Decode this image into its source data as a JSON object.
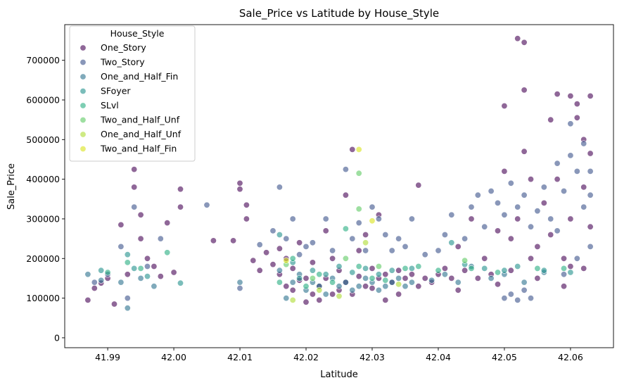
{
  "chart_data": {
    "type": "scatter",
    "title": "Sale_Price vs Latitude by House_Style",
    "xlabel": "Latitude",
    "ylabel": "Sale_Price",
    "xlim": [
      41.9835,
      42.0665
    ],
    "ylim": [
      -25000,
      790000
    ],
    "x_ticks": [
      41.99,
      42.0,
      42.01,
      42.02,
      42.03,
      42.04,
      42.05,
      42.06
    ],
    "x_tick_labels": [
      "41.99",
      "42.00",
      "42.01",
      "42.02",
      "42.03",
      "42.04",
      "42.05",
      "42.06"
    ],
    "y_ticks": [
      0,
      100000,
      200000,
      300000,
      400000,
      500000,
      600000,
      700000
    ],
    "y_tick_labels": [
      "0",
      "100000",
      "200000",
      "300000",
      "400000",
      "500000",
      "600000",
      "700000"
    ],
    "grid": false,
    "marker_alpha": 0.6,
    "legend": {
      "title": "House_Style",
      "placement": "upper-left",
      "entries": [
        "One_Story",
        "Two_Story",
        "One_and_Half_Fin",
        "SFoyer",
        "SLvl",
        "Two_and_Half_Unf",
        "One_and_Half_Unf",
        "Two_and_Half_Fin"
      ]
    },
    "series": [
      {
        "name": "One_Story",
        "color": "#440154",
        "points": [
          [
            41.987,
            95000
          ],
          [
            41.988,
            125000
          ],
          [
            41.989,
            138000
          ],
          [
            41.99,
            150000
          ],
          [
            41.991,
            85000
          ],
          [
            41.992,
            285000
          ],
          [
            41.993,
            160000
          ],
          [
            41.994,
            425000
          ],
          [
            41.994,
            380000
          ],
          [
            41.995,
            310000
          ],
          [
            41.995,
            250000
          ],
          [
            41.996,
            200000
          ],
          [
            41.997,
            180000
          ],
          [
            41.998,
            155000
          ],
          [
            41.999,
            290000
          ],
          [
            42.0,
            165000
          ],
          [
            42.001,
            375000
          ],
          [
            42.001,
            330000
          ],
          [
            42.006,
            245000
          ],
          [
            42.009,
            245000
          ],
          [
            42.01,
            390000
          ],
          [
            42.01,
            375000
          ],
          [
            42.011,
            335000
          ],
          [
            42.011,
            300000
          ],
          [
            42.012,
            195000
          ],
          [
            42.013,
            170000
          ],
          [
            42.014,
            215000
          ],
          [
            42.015,
            185000
          ],
          [
            42.016,
            160000
          ],
          [
            42.016,
            225000
          ],
          [
            42.017,
            130000
          ],
          [
            42.017,
            200000
          ],
          [
            42.018,
            175000
          ],
          [
            42.018,
            120000
          ],
          [
            42.019,
            145000
          ],
          [
            42.019,
            240000
          ],
          [
            42.02,
            90000
          ],
          [
            42.02,
            150000
          ],
          [
            42.021,
            110000
          ],
          [
            42.021,
            190000
          ],
          [
            42.022,
            95000
          ],
          [
            42.022,
            130000
          ],
          [
            42.023,
            150000
          ],
          [
            42.023,
            270000
          ],
          [
            42.024,
            110000
          ],
          [
            42.024,
            200000
          ],
          [
            42.025,
            120000
          ],
          [
            42.025,
            170000
          ],
          [
            42.026,
            360000
          ],
          [
            42.026,
            140000
          ],
          [
            42.027,
            475000
          ],
          [
            42.027,
            110000
          ],
          [
            42.028,
            155000
          ],
          [
            42.028,
            220000
          ],
          [
            42.029,
            130000
          ],
          [
            42.029,
            260000
          ],
          [
            42.03,
            125000
          ],
          [
            42.03,
            175000
          ],
          [
            42.031,
            150000
          ],
          [
            42.031,
            310000
          ],
          [
            42.032,
            95000
          ],
          [
            42.032,
            160000
          ],
          [
            42.033,
            140000
          ],
          [
            42.034,
            170000
          ],
          [
            42.034,
            110000
          ],
          [
            42.035,
            150000
          ],
          [
            42.036,
            160000
          ],
          [
            42.037,
            385000
          ],
          [
            42.037,
            130000
          ],
          [
            42.038,
            150000
          ],
          [
            42.039,
            140000
          ],
          [
            42.04,
            160000
          ],
          [
            42.041,
            175000
          ],
          [
            42.042,
            150000
          ],
          [
            42.043,
            230000
          ],
          [
            42.043,
            120000
          ],
          [
            42.044,
            170000
          ],
          [
            42.045,
            300000
          ],
          [
            42.046,
            150000
          ],
          [
            42.047,
            200000
          ],
          [
            42.048,
            160000
          ],
          [
            42.049,
            135000
          ],
          [
            42.049,
            270000
          ],
          [
            42.05,
            585000
          ],
          [
            42.05,
            420000
          ],
          [
            42.051,
            250000
          ],
          [
            42.051,
            170000
          ],
          [
            42.052,
            755000
          ],
          [
            42.052,
            300000
          ],
          [
            42.053,
            745000
          ],
          [
            42.053,
            625000
          ],
          [
            42.053,
            470000
          ],
          [
            42.054,
            400000
          ],
          [
            42.054,
            200000
          ],
          [
            42.055,
            230000
          ],
          [
            42.055,
            150000
          ],
          [
            42.056,
            340000
          ],
          [
            42.057,
            550000
          ],
          [
            42.057,
            260000
          ],
          [
            42.058,
            615000
          ],
          [
            42.058,
            400000
          ],
          [
            42.059,
            200000
          ],
          [
            42.059,
            130000
          ],
          [
            42.06,
            610000
          ],
          [
            42.06,
            300000
          ],
          [
            42.061,
            590000
          ],
          [
            42.061,
            555000
          ],
          [
            42.062,
            380000
          ],
          [
            42.062,
            500000
          ],
          [
            42.063,
            610000
          ],
          [
            42.063,
            465000
          ],
          [
            42.063,
            280000
          ],
          [
            42.062,
            175000
          ],
          [
            42.06,
            180000
          ]
        ]
      },
      {
        "name": "Two_Story",
        "color": "#3b528b",
        "points": [
          [
            41.988,
            140000
          ],
          [
            41.99,
            160000
          ],
          [
            41.992,
            230000
          ],
          [
            41.993,
            100000
          ],
          [
            41.994,
            330000
          ],
          [
            41.996,
            180000
          ],
          [
            41.998,
            250000
          ],
          [
            42.005,
            335000
          ],
          [
            42.01,
            125000
          ],
          [
            42.013,
            235000
          ],
          [
            42.015,
            270000
          ],
          [
            42.016,
            380000
          ],
          [
            42.017,
            250000
          ],
          [
            42.018,
            300000
          ],
          [
            42.019,
            210000
          ],
          [
            42.02,
            230000
          ],
          [
            42.021,
            240000
          ],
          [
            42.023,
            300000
          ],
          [
            42.024,
            220000
          ],
          [
            42.026,
            425000
          ],
          [
            42.027,
            250000
          ],
          [
            42.028,
            290000
          ],
          [
            42.029,
            220000
          ],
          [
            42.03,
            330000
          ],
          [
            42.031,
            300000
          ],
          [
            42.032,
            260000
          ],
          [
            42.033,
            220000
          ],
          [
            42.034,
            250000
          ],
          [
            42.035,
            230000
          ],
          [
            42.036,
            300000
          ],
          [
            42.038,
            210000
          ],
          [
            42.04,
            220000
          ],
          [
            42.041,
            260000
          ],
          [
            42.042,
            310000
          ],
          [
            42.044,
            250000
          ],
          [
            42.045,
            330000
          ],
          [
            42.046,
            360000
          ],
          [
            42.047,
            280000
          ],
          [
            42.048,
            370000
          ],
          [
            42.049,
            340000
          ],
          [
            42.05,
            310000
          ],
          [
            42.05,
            100000
          ],
          [
            42.051,
            390000
          ],
          [
            42.051,
            110000
          ],
          [
            42.052,
            330000
          ],
          [
            42.052,
            95000
          ],
          [
            42.053,
            360000
          ],
          [
            42.053,
            120000
          ],
          [
            42.054,
            280000
          ],
          [
            42.054,
            100000
          ],
          [
            42.055,
            320000
          ],
          [
            42.056,
            380000
          ],
          [
            42.057,
            300000
          ],
          [
            42.058,
            440000
          ],
          [
            42.058,
            270000
          ],
          [
            42.059,
            370000
          ],
          [
            42.059,
            160000
          ],
          [
            42.06,
            540000
          ],
          [
            42.06,
            460000
          ],
          [
            42.061,
            420000
          ],
          [
            42.061,
            200000
          ],
          [
            42.062,
            490000
          ],
          [
            42.062,
            330000
          ],
          [
            42.063,
            420000
          ],
          [
            42.063,
            360000
          ],
          [
            42.063,
            230000
          ]
        ]
      },
      {
        "name": "One_and_Half_Fin",
        "color": "#2c728e",
        "points": [
          [
            41.987,
            160000
          ],
          [
            41.989,
            145000
          ],
          [
            41.992,
            140000
          ],
          [
            41.993,
            75000
          ],
          [
            41.995,
            150000
          ],
          [
            41.997,
            130000
          ],
          [
            42.01,
            140000
          ],
          [
            42.016,
            170000
          ],
          [
            42.017,
            100000
          ],
          [
            42.018,
            140000
          ],
          [
            42.019,
            160000
          ],
          [
            42.02,
            120000
          ],
          [
            42.021,
            140000
          ],
          [
            42.022,
            130000
          ],
          [
            42.023,
            110000
          ],
          [
            42.024,
            150000
          ],
          [
            42.025,
            130000
          ],
          [
            42.026,
            140000
          ],
          [
            42.027,
            120000
          ],
          [
            42.028,
            130000
          ],
          [
            42.029,
            150000
          ],
          [
            42.03,
            140000
          ],
          [
            42.031,
            120000
          ],
          [
            42.032,
            130000
          ],
          [
            42.033,
            140000
          ],
          [
            42.034,
            150000
          ],
          [
            42.035,
            130000
          ],
          [
            42.036,
            140000
          ],
          [
            42.039,
            145000
          ],
          [
            42.041,
            160000
          ],
          [
            42.043,
            140000
          ],
          [
            42.045,
            180000
          ],
          [
            42.048,
            150000
          ],
          [
            42.05,
            160000
          ],
          [
            42.053,
            140000
          ],
          [
            42.056,
            165000
          ]
        ]
      },
      {
        "name": "SFoyer",
        "color": "#21918c",
        "points": [
          [
            41.989,
            170000
          ],
          [
            41.993,
            210000
          ],
          [
            41.994,
            175000
          ],
          [
            41.996,
            155000
          ],
          [
            42.001,
            138000
          ],
          [
            42.016,
            260000
          ],
          [
            42.018,
            190000
          ],
          [
            42.019,
            150000
          ],
          [
            42.021,
            170000
          ],
          [
            42.023,
            160000
          ],
          [
            42.025,
            180000
          ],
          [
            42.027,
            165000
          ],
          [
            42.029,
            175000
          ],
          [
            42.031,
            160000
          ],
          [
            42.033,
            170000
          ],
          [
            42.036,
            175000
          ],
          [
            42.042,
            240000
          ],
          [
            42.044,
            185000
          ],
          [
            42.047,
            175000
          ],
          [
            42.05,
            170000
          ],
          [
            42.052,
            180000
          ],
          [
            42.056,
            170000
          ],
          [
            42.06,
            165000
          ]
        ]
      },
      {
        "name": "SLvl",
        "color": "#27ad81",
        "points": [
          [
            41.99,
            165000
          ],
          [
            41.993,
            190000
          ],
          [
            41.995,
            175000
          ],
          [
            41.999,
            215000
          ],
          [
            42.016,
            140000
          ],
          [
            42.018,
            200000
          ],
          [
            42.02,
            130000
          ],
          [
            42.022,
            160000
          ],
          [
            42.024,
            140000
          ],
          [
            42.026,
            275000
          ],
          [
            42.028,
            180000
          ],
          [
            42.03,
            150000
          ],
          [
            42.032,
            145000
          ],
          [
            42.035,
            175000
          ],
          [
            42.037,
            180000
          ],
          [
            42.04,
            170000
          ],
          [
            42.045,
            175000
          ],
          [
            42.049,
            165000
          ],
          [
            42.055,
            175000
          ],
          [
            42.059,
            175000
          ]
        ]
      },
      {
        "name": "Two_and_Half_Unf",
        "color": "#5ec962",
        "points": [
          [
            42.017,
            185000
          ],
          [
            42.021,
            150000
          ],
          [
            42.026,
            200000
          ],
          [
            42.028,
            415000
          ],
          [
            42.028,
            325000
          ],
          [
            42.031,
            180000
          ],
          [
            42.044,
            195000
          ]
        ]
      },
      {
        "name": "One_and_Half_Unf",
        "color": "#addc30",
        "points": [
          [
            42.018,
            95000
          ],
          [
            42.022,
            120000
          ],
          [
            42.025,
            105000
          ],
          [
            42.029,
            240000
          ],
          [
            42.034,
            135000
          ]
        ]
      },
      {
        "name": "Two_and_Half_Fin",
        "color": "#d8e219",
        "points": [
          [
            42.017,
            195000
          ],
          [
            42.028,
            475000
          ],
          [
            42.03,
            295000
          ]
        ]
      }
    ]
  }
}
